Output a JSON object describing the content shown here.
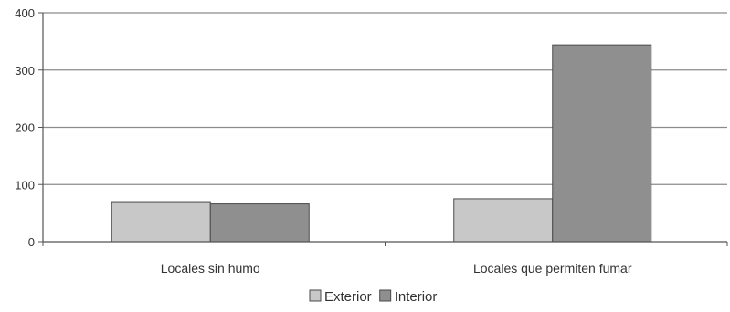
{
  "chart_data": {
    "type": "bar",
    "categories": [
      "Locales sin humo",
      "Locales que permiten fumar"
    ],
    "series": [
      {
        "name": "Exterior",
        "values": [
          70,
          75
        ],
        "color": "#c8c8c8"
      },
      {
        "name": "Interior",
        "values": [
          66,
          344
        ],
        "color": "#8f8f8f"
      }
    ],
    "yticks": [
      "0",
      "100",
      "200",
      "300",
      "400"
    ],
    "ylim": [
      0,
      400
    ],
    "grid": true,
    "legend_position": "bottom"
  }
}
